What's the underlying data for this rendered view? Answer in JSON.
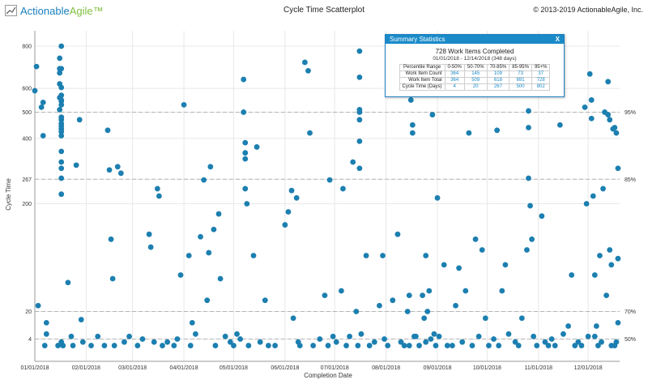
{
  "header": {
    "logo_text_actionable": "Actionable",
    "logo_text_agile": "Agile™",
    "title": "Cycle Time Scatterplot",
    "copyright": "© 2013-2019 ActionableAgile, Inc."
  },
  "summary": {
    "title": "Summary Statistics",
    "close_label": "X",
    "headline": "728 Work Items Completed",
    "date_range": "01/01/2018 - 12/14/2018 (348 days)",
    "columns": [
      "Percentile Range",
      "0-50%",
      "50-70%",
      "70-85%",
      "85-95%",
      "95+%"
    ],
    "rows": [
      {
        "label": "Work Item Count",
        "values": [
          "364",
          "145",
          "109",
          "73",
          "37"
        ]
      },
      {
        "label": "Work Item Total",
        "values": [
          "364",
          "509",
          "618",
          "691",
          "728"
        ]
      },
      {
        "label": "Cycle Time (Days)",
        "values": [
          "4",
          "20",
          "267",
          "500",
          "802"
        ]
      }
    ]
  },
  "colors": {
    "dot": "#1c7fb0",
    "grid": "#e8e8e8",
    "percentile_line": "#b5b5b5",
    "accent": "#1a8ac8"
  },
  "chart_data": {
    "type": "scatter",
    "title": "Cycle Time Scatterplot",
    "xlabel": "Completion Date",
    "ylabel": "Cycle Time",
    "xlim": [
      "2018-01-01",
      "2018-12-20"
    ],
    "x_ticks": [
      "01/01/2018",
      "02/01/2018",
      "03/01/2018",
      "04/01/2018",
      "05/01/2018",
      "06/01/2018",
      "07/01/2018",
      "08/01/2018",
      "09/01/2018",
      "10/01/2018",
      "11/01/2018",
      "12/01/2018"
    ],
    "y_scale": "sqrt",
    "ylim": [
      0,
      880
    ],
    "y_ticks": [
      4,
      20,
      200,
      267,
      400,
      500,
      600,
      800
    ],
    "percentile_lines": [
      {
        "label": "50%",
        "value": 4
      },
      {
        "label": "70%",
        "value": 20
      },
      {
        "label": "85%",
        "value": 267
      },
      {
        "label": "95%",
        "value": 500
      }
    ],
    "grid": true,
    "legend": "none",
    "points": [
      [
        "2018-01-01",
        590
      ],
      [
        "2018-01-02",
        700
      ],
      [
        "2018-01-03",
        25
      ],
      [
        "2018-01-05",
        520
      ],
      [
        "2018-01-06",
        540
      ],
      [
        "2018-01-06",
        410
      ],
      [
        "2018-01-07",
        2
      ],
      [
        "2018-01-08",
        12
      ],
      [
        "2018-01-08",
        6
      ],
      [
        "2018-01-15",
        2
      ],
      [
        "2018-01-16",
        740
      ],
      [
        "2018-01-16",
        690
      ],
      [
        "2018-01-16",
        670
      ],
      [
        "2018-01-16",
        620
      ],
      [
        "2018-01-16",
        560
      ],
      [
        "2018-01-16",
        510
      ],
      [
        "2018-01-17",
        800
      ],
      [
        "2018-01-17",
        690
      ],
      [
        "2018-01-17",
        604
      ],
      [
        "2018-01-17",
        570
      ],
      [
        "2018-01-17",
        550
      ],
      [
        "2018-01-17",
        545
      ],
      [
        "2018-01-17",
        530
      ],
      [
        "2018-01-17",
        480
      ],
      [
        "2018-01-17",
        470
      ],
      [
        "2018-01-17",
        455
      ],
      [
        "2018-01-17",
        445
      ],
      [
        "2018-01-17",
        435
      ],
      [
        "2018-01-17",
        425
      ],
      [
        "2018-01-17",
        410
      ],
      [
        "2018-01-17",
        355
      ],
      [
        "2018-01-17",
        320
      ],
      [
        "2018-01-17",
        300
      ],
      [
        "2018-01-17",
        270
      ],
      [
        "2018-01-17",
        225
      ],
      [
        "2018-01-17",
        3
      ],
      [
        "2018-01-18",
        2
      ],
      [
        "2018-01-21",
        50
      ],
      [
        "2018-01-23",
        5
      ],
      [
        "2018-01-24",
        2
      ],
      [
        "2018-01-26",
        310
      ],
      [
        "2018-01-28",
        470
      ],
      [
        "2018-01-29",
        14
      ],
      [
        "2018-01-30",
        3
      ],
      [
        "2018-02-04",
        2
      ],
      [
        "2018-02-08",
        5
      ],
      [
        "2018-02-12",
        2
      ],
      [
        "2018-02-14",
        430
      ],
      [
        "2018-02-15",
        295
      ],
      [
        "2018-02-16",
        120
      ],
      [
        "2018-02-17",
        55
      ],
      [
        "2018-02-18",
        2
      ],
      [
        "2018-02-20",
        305
      ],
      [
        "2018-02-22",
        285
      ],
      [
        "2018-02-24",
        3
      ],
      [
        "2018-02-27",
        5
      ],
      [
        "2018-03-04",
        2
      ],
      [
        "2018-03-07",
        4
      ],
      [
        "2018-03-11",
        130
      ],
      [
        "2018-03-12",
        105
      ],
      [
        "2018-03-14",
        3
      ],
      [
        "2018-03-16",
        240
      ],
      [
        "2018-03-17",
        220
      ],
      [
        "2018-03-19",
        2
      ],
      [
        "2018-03-22",
        3
      ],
      [
        "2018-03-26",
        2
      ],
      [
        "2018-03-28",
        4
      ],
      [
        "2018-03-30",
        60
      ],
      [
        "2018-04-01",
        530
      ],
      [
        "2018-04-04",
        90
      ],
      [
        "2018-04-05",
        2
      ],
      [
        "2018-04-06",
        12
      ],
      [
        "2018-04-08",
        6
      ],
      [
        "2018-04-11",
        125
      ],
      [
        "2018-04-13",
        265
      ],
      [
        "2018-04-15",
        30
      ],
      [
        "2018-04-16",
        95
      ],
      [
        "2018-04-17",
        305
      ],
      [
        "2018-04-19",
        140
      ],
      [
        "2018-04-20",
        2
      ],
      [
        "2018-04-22",
        175
      ],
      [
        "2018-04-23",
        55
      ],
      [
        "2018-04-26",
        5
      ],
      [
        "2018-04-29",
        3
      ],
      [
        "2018-05-01",
        2
      ],
      [
        "2018-05-03",
        6
      ],
      [
        "2018-05-05",
        4
      ],
      [
        "2018-05-07",
        640
      ],
      [
        "2018-05-07",
        500
      ],
      [
        "2018-05-08",
        385
      ],
      [
        "2018-05-08",
        350
      ],
      [
        "2018-05-08",
        330
      ],
      [
        "2018-05-08",
        240
      ],
      [
        "2018-05-09",
        200
      ],
      [
        "2018-05-10",
        2
      ],
      [
        "2018-05-13",
        90
      ],
      [
        "2018-05-15",
        370
      ],
      [
        "2018-05-17",
        3
      ],
      [
        "2018-05-20",
        30
      ],
      [
        "2018-05-22",
        2
      ],
      [
        "2018-05-26",
        2
      ],
      [
        "2018-06-01",
        150
      ],
      [
        "2018-06-03",
        180
      ],
      [
        "2018-06-05",
        235
      ],
      [
        "2018-06-06",
        15
      ],
      [
        "2018-06-08",
        215
      ],
      [
        "2018-06-09",
        3
      ],
      [
        "2018-06-10",
        2
      ],
      [
        "2018-06-13",
        720
      ],
      [
        "2018-06-15",
        680
      ],
      [
        "2018-06-16",
        420
      ],
      [
        "2018-06-18",
        2
      ],
      [
        "2018-06-22",
        4
      ],
      [
        "2018-06-25",
        35
      ],
      [
        "2018-06-27",
        2
      ],
      [
        "2018-06-28",
        265
      ],
      [
        "2018-06-30",
        5
      ],
      [
        "2018-07-02",
        3
      ],
      [
        "2018-07-05",
        40
      ],
      [
        "2018-07-06",
        240
      ],
      [
        "2018-07-08",
        2
      ],
      [
        "2018-07-10",
        5
      ],
      [
        "2018-07-12",
        320
      ],
      [
        "2018-07-14",
        20
      ],
      [
        "2018-07-15",
        2
      ],
      [
        "2018-07-16",
        775
      ],
      [
        "2018-07-16",
        650
      ],
      [
        "2018-07-16",
        510
      ],
      [
        "2018-07-16",
        500
      ],
      [
        "2018-07-16",
        470
      ],
      [
        "2018-07-16",
        390
      ],
      [
        "2018-07-16",
        300
      ],
      [
        "2018-07-17",
        6
      ],
      [
        "2018-07-20",
        90
      ],
      [
        "2018-07-22",
        2
      ],
      [
        "2018-07-25",
        3
      ],
      [
        "2018-07-28",
        25
      ],
      [
        "2018-07-30",
        90
      ],
      [
        "2018-07-31",
        4
      ],
      [
        "2018-08-02",
        2
      ],
      [
        "2018-08-05",
        30
      ],
      [
        "2018-08-08",
        130
      ],
      [
        "2018-08-10",
        3
      ],
      [
        "2018-08-14",
        20
      ],
      [
        "2018-08-15",
        35
      ],
      [
        "2018-08-17",
        450
      ],
      [
        "2018-08-17",
        420
      ],
      [
        "2018-08-18",
        5
      ],
      [
        "2018-08-21",
        2
      ],
      [
        "2018-08-23",
        35
      ],
      [
        "2018-08-25",
        90
      ],
      [
        "2018-08-28",
        4
      ],
      [
        "2018-08-31",
        2
      ],
      [
        "2018-08-12",
        2
      ],
      [
        "2018-08-15",
        2
      ],
      [
        "2018-08-19",
        5
      ],
      [
        "2018-08-25",
        3
      ],
      [
        "2018-08-30",
        6
      ],
      [
        "2018-08-16",
        550
      ],
      [
        "2018-08-24",
        15
      ],
      [
        "2018-08-26",
        20
      ],
      [
        "2018-08-27",
        40
      ],
      [
        "2018-08-29",
        490
      ],
      [
        "2018-09-01",
        215
      ],
      [
        "2018-09-02",
        5
      ],
      [
        "2018-09-05",
        75
      ],
      [
        "2018-09-07",
        2
      ],
      [
        "2018-09-10",
        2
      ],
      [
        "2018-09-12",
        25
      ],
      [
        "2018-09-14",
        70
      ],
      [
        "2018-09-16",
        3
      ],
      [
        "2018-09-18",
        40
      ],
      [
        "2018-09-20",
        420
      ],
      [
        "2018-09-22",
        2
      ],
      [
        "2018-09-24",
        120
      ],
      [
        "2018-09-26",
        5
      ],
      [
        "2018-09-28",
        100
      ],
      [
        "2018-09-30",
        15
      ],
      [
        "2018-10-02",
        2
      ],
      [
        "2018-10-05",
        4
      ],
      [
        "2018-10-07",
        430
      ],
      [
        "2018-10-08",
        2
      ],
      [
        "2018-10-10",
        40
      ],
      [
        "2018-10-12",
        75
      ],
      [
        "2018-10-14",
        6
      ],
      [
        "2018-10-18",
        3
      ],
      [
        "2018-10-20",
        2
      ],
      [
        "2018-10-22",
        15
      ],
      [
        "2018-10-25",
        100
      ],
      [
        "2018-10-26",
        505
      ],
      [
        "2018-10-26",
        440
      ],
      [
        "2018-10-26",
        270
      ],
      [
        "2018-10-27",
        195
      ],
      [
        "2018-10-28",
        120
      ],
      [
        "2018-10-29",
        5
      ],
      [
        "2018-10-31",
        2
      ],
      [
        "2018-11-03",
        170
      ],
      [
        "2018-11-05",
        3
      ],
      [
        "2018-11-07",
        2
      ],
      [
        "2018-11-09",
        4
      ],
      [
        "2018-11-11",
        2
      ],
      [
        "2018-11-14",
        450
      ],
      [
        "2018-11-16",
        6
      ],
      [
        "2018-11-19",
        10
      ],
      [
        "2018-11-21",
        60
      ],
      [
        "2018-11-23",
        2
      ],
      [
        "2018-11-25",
        3
      ],
      [
        "2018-11-27",
        2
      ],
      [
        "2018-11-29",
        520
      ],
      [
        "2018-11-30",
        200
      ],
      [
        "2018-12-01",
        5
      ],
      [
        "2018-12-02",
        665
      ],
      [
        "2018-12-03",
        550
      ],
      [
        "2018-12-03",
        475
      ],
      [
        "2018-12-04",
        220
      ],
      [
        "2018-12-05",
        60
      ],
      [
        "2018-12-05",
        5
      ],
      [
        "2018-12-06",
        10
      ],
      [
        "2018-12-07",
        2
      ],
      [
        "2018-12-08",
        90
      ],
      [
        "2018-12-09",
        3
      ],
      [
        "2018-12-10",
        240
      ],
      [
        "2018-12-11",
        500
      ],
      [
        "2018-12-12",
        35
      ],
      [
        "2018-12-13",
        630
      ],
      [
        "2018-12-13",
        490
      ],
      [
        "2018-12-14",
        100
      ],
      [
        "2018-12-14",
        470
      ],
      [
        "2018-12-15",
        2
      ],
      [
        "2018-12-15",
        75
      ],
      [
        "2018-12-16",
        435
      ],
      [
        "2018-12-17",
        2
      ],
      [
        "2018-12-17",
        440
      ],
      [
        "2018-12-18",
        420
      ],
      [
        "2018-12-18",
        3
      ],
      [
        "2018-12-19",
        300
      ],
      [
        "2018-12-19",
        12
      ],
      [
        "2018-12-19",
        85
      ]
    ]
  }
}
